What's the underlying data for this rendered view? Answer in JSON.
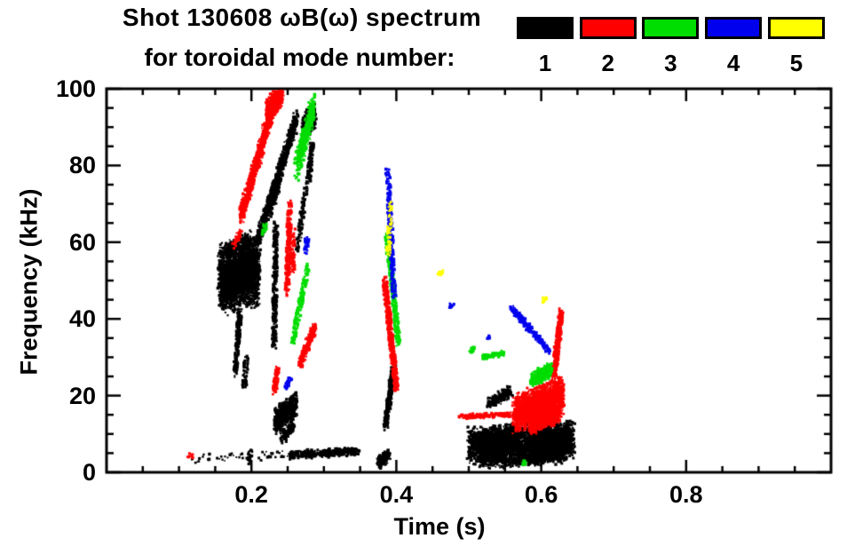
{
  "page": {
    "background": "#ffffff"
  },
  "title": {
    "line1": "Shot 130608 ωB(ω) spectrum",
    "line2": "for toroidal mode number:"
  },
  "legend": {
    "entries": [
      {
        "label": "1",
        "color": "#000000"
      },
      {
        "label": "2",
        "color": "#ff0000"
      },
      {
        "label": "3",
        "color": "#00dd00"
      },
      {
        "label": "4",
        "color": "#0000ee"
      },
      {
        "label": "5",
        "color": "#ffff00"
      }
    ]
  },
  "axes": {
    "x": {
      "label": "Time (s)",
      "min": 0,
      "max": 1,
      "minor_step": 0.05,
      "major_ticks": [
        {
          "v": 0.2,
          "label": "0.2"
        },
        {
          "v": 0.4,
          "label": "0.4"
        },
        {
          "v": 0.6,
          "label": "0.6"
        },
        {
          "v": 0.8,
          "label": "0.8"
        }
      ]
    },
    "y": {
      "label": "Frequency (kHz)",
      "min": 0,
      "max": 100,
      "minor_step": 5,
      "major_ticks": [
        {
          "v": 0,
          "label": "0"
        },
        {
          "v": 20,
          "label": "20"
        },
        {
          "v": 40,
          "label": "40"
        },
        {
          "v": 60,
          "label": "60"
        },
        {
          "v": 80,
          "label": "80"
        },
        {
          "v": 100,
          "label": "100"
        }
      ]
    }
  },
  "chart_data": {
    "type": "scatter",
    "title": "Shot 130608 ωB(ω) spectrum for toroidal mode number 1-5",
    "xlabel": "Time (s)",
    "ylabel": "Frequency (kHz)",
    "xlim": [
      0,
      1
    ],
    "ylim": [
      0,
      100
    ],
    "grid": false,
    "legend_position": "top-right",
    "streak_format": [
      "t_start_s",
      "freq_start_kHz",
      "t_end_s",
      "freq_end_kHz",
      "freq_spread_kHz",
      "n_points"
    ],
    "series": [
      {
        "name": "n=1",
        "color": "#000000",
        "streaks": [
          [
            0.156,
            50,
            0.21,
            53,
            16,
            2000
          ],
          [
            0.162,
            49,
            0.205,
            54,
            8,
            1200
          ],
          [
            0.165,
            58,
            0.198,
            61,
            4,
            200
          ],
          [
            0.178,
            26,
            0.184,
            42,
            3,
            200
          ],
          [
            0.19,
            22,
            0.193,
            30,
            2,
            60
          ],
          [
            0.2315,
            33,
            0.2335,
            65,
            2,
            330
          ],
          [
            0.208,
            60,
            0.262,
            92,
            4.5,
            800
          ],
          [
            0.224,
            68,
            0.24,
            78,
            5,
            260
          ],
          [
            0.272,
            90,
            0.287,
            93,
            6,
            380
          ],
          [
            0.279,
            76,
            0.284,
            86,
            2.5,
            110
          ],
          [
            0.263,
            58,
            0.276,
            75,
            2,
            110
          ],
          [
            0.233,
            13,
            0.262,
            18,
            6,
            620
          ],
          [
            0.242,
            9,
            0.258,
            12.5,
            3,
            130
          ],
          [
            0.115,
            3.5,
            0.245,
            4.5,
            2,
            55
          ],
          [
            0.195,
            2.5,
            0.199,
            6,
            1.5,
            25
          ],
          [
            0.252,
            4.5,
            0.348,
            5.5,
            2,
            380
          ],
          [
            0.374,
            2.5,
            0.39,
            4.5,
            3,
            150
          ],
          [
            0.385,
            12,
            0.397,
            28,
            3,
            280
          ],
          [
            0.527,
            18,
            0.558,
            21,
            3.5,
            190
          ],
          [
            0.5,
            6.5,
            0.645,
            8,
            9,
            2300
          ],
          [
            0.515,
            7,
            0.565,
            9,
            7,
            1000
          ],
          [
            0.585,
            6,
            0.64,
            9,
            8,
            1100
          ],
          [
            0.52,
            2.5,
            0.63,
            4,
            3,
            320
          ]
        ]
      },
      {
        "name": "n=2",
        "color": "#ff0000",
        "streaks": [
          [
            0.186,
            67,
            0.232,
            97,
            4.5,
            950
          ],
          [
            0.222,
            94,
            0.242,
            99,
            6,
            420
          ],
          [
            0.249,
            47,
            0.253,
            70,
            2,
            260
          ],
          [
            0.2565,
            52,
            0.258,
            63,
            1.2,
            70
          ],
          [
            0.232,
            21,
            0.236,
            27,
            2,
            90
          ],
          [
            0.267,
            28,
            0.287,
            38,
            2.5,
            240
          ],
          [
            0.384,
            50,
            0.4,
            22,
            3,
            520
          ],
          [
            0.488,
            14.5,
            0.59,
            15.3,
            1.2,
            260
          ],
          [
            0.563,
            15,
            0.63,
            20,
            9,
            1700
          ],
          [
            0.585,
            12,
            0.625,
            15,
            4,
            450
          ],
          [
            0.617,
            25,
            0.628,
            42,
            2.5,
            380
          ],
          [
            0.114,
            4,
            0.117,
            4.5,
            1,
            12
          ],
          [
            0.175,
            59,
            0.185,
            63,
            1.5,
            40
          ]
        ]
      },
      {
        "name": "n=3",
        "color": "#00dd00",
        "streaks": [
          [
            0.262,
            80,
            0.286,
            95,
            7,
            480
          ],
          [
            0.257,
            34,
            0.278,
            54,
            1.5,
            170
          ],
          [
            0.387,
            62,
            0.403,
            34,
            2,
            350
          ],
          [
            0.503,
            31.5,
            0.507,
            32.5,
            1,
            22
          ],
          [
            0.52,
            30,
            0.548,
            31,
            1.2,
            80
          ],
          [
            0.587,
            24,
            0.614,
            27,
            3.5,
            340
          ],
          [
            0.575,
            2.2,
            0.578,
            2.8,
            1,
            14
          ],
          [
            0.217,
            62,
            0.219,
            65,
            1,
            22
          ]
        ]
      },
      {
        "name": "n=4",
        "color": "#0000ee",
        "streaks": [
          [
            0.275,
            57,
            0.277,
            61,
            1,
            40
          ],
          [
            0.247,
            22,
            0.254,
            24.5,
            1,
            28
          ],
          [
            0.388,
            79,
            0.397,
            46,
            1.8,
            270
          ],
          [
            0.475,
            43,
            0.477,
            44,
            1,
            12
          ],
          [
            0.558,
            43,
            0.612,
            31.5,
            1.6,
            250
          ],
          [
            0.527,
            35,
            0.529,
            35.5,
            1,
            10
          ]
        ]
      },
      {
        "name": "n=5",
        "color": "#ffff00",
        "streaks": [
          [
            0.389,
            57,
            0.392,
            70,
            1.5,
            60
          ],
          [
            0.459,
            51.5,
            0.463,
            52.5,
            1,
            26
          ],
          [
            0.602,
            44.5,
            0.605,
            45.5,
            1,
            14
          ]
        ]
      }
    ]
  }
}
